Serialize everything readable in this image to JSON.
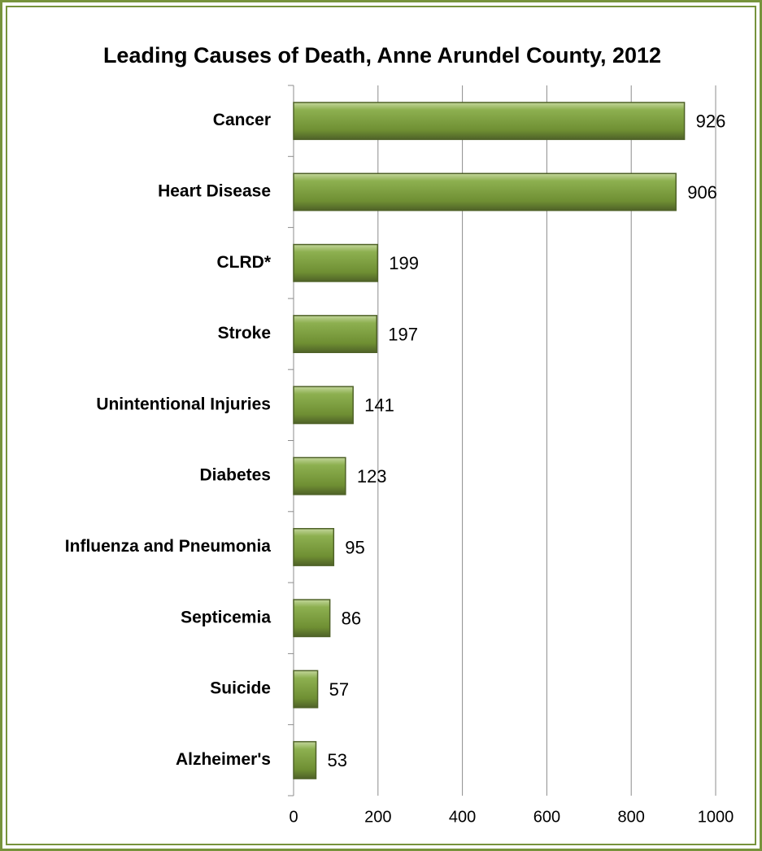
{
  "chart_data": {
    "type": "bar",
    "orientation": "horizontal",
    "title": "Leading Causes of Death, Anne Arundel County, 2012",
    "categories": [
      "Cancer",
      "Heart Disease",
      "CLRD*",
      "Stroke",
      "Unintentional Injuries",
      "Diabetes",
      "Influenza and Pneumonia",
      "Septicemia",
      "Suicide",
      "Alzheimer's"
    ],
    "values": [
      926,
      906,
      199,
      197,
      141,
      123,
      95,
      86,
      57,
      53
    ],
    "color": "#77933c",
    "xlim": [
      0,
      1000
    ],
    "xticks": [
      0,
      200,
      400,
      600,
      800,
      1000
    ],
    "grid": true
  }
}
